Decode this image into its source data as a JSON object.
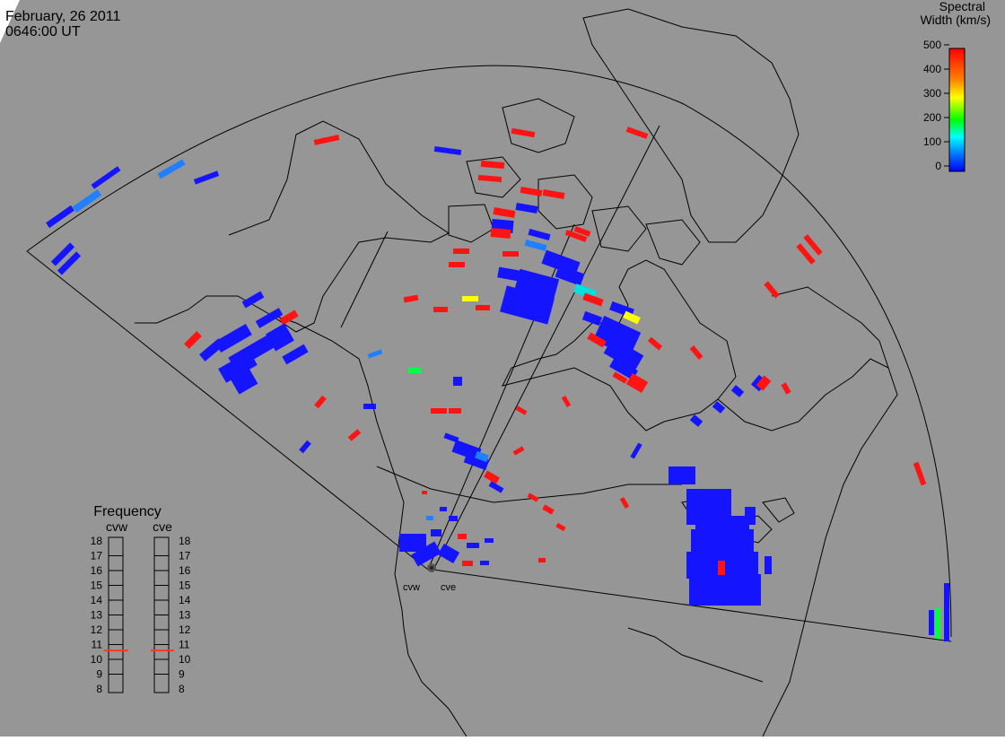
{
  "header": {
    "date": "February, 26 2011",
    "time": "0646:00 UT"
  },
  "colorbar": {
    "title_line1": "Spectral",
    "title_line2": "Width (km/s)",
    "ticks": [
      "500",
      "400",
      "300",
      "200",
      "100",
      "0"
    ]
  },
  "frequency_panel": {
    "title": "Frequency",
    "radar_left": "cvw",
    "radar_right": "cve",
    "scale": [
      "18",
      "17",
      "16",
      "15",
      "14",
      "13",
      "12",
      "11",
      "10",
      "9",
      "8"
    ],
    "marker_left": 10.6,
    "marker_right": 10.6
  },
  "radars": {
    "site_left": "cvw",
    "site_right": "cve"
  },
  "colors": {
    "background": "#969696",
    "low": "#1414ff",
    "high": "#ff1414",
    "marker": "#ff3a1a"
  }
}
